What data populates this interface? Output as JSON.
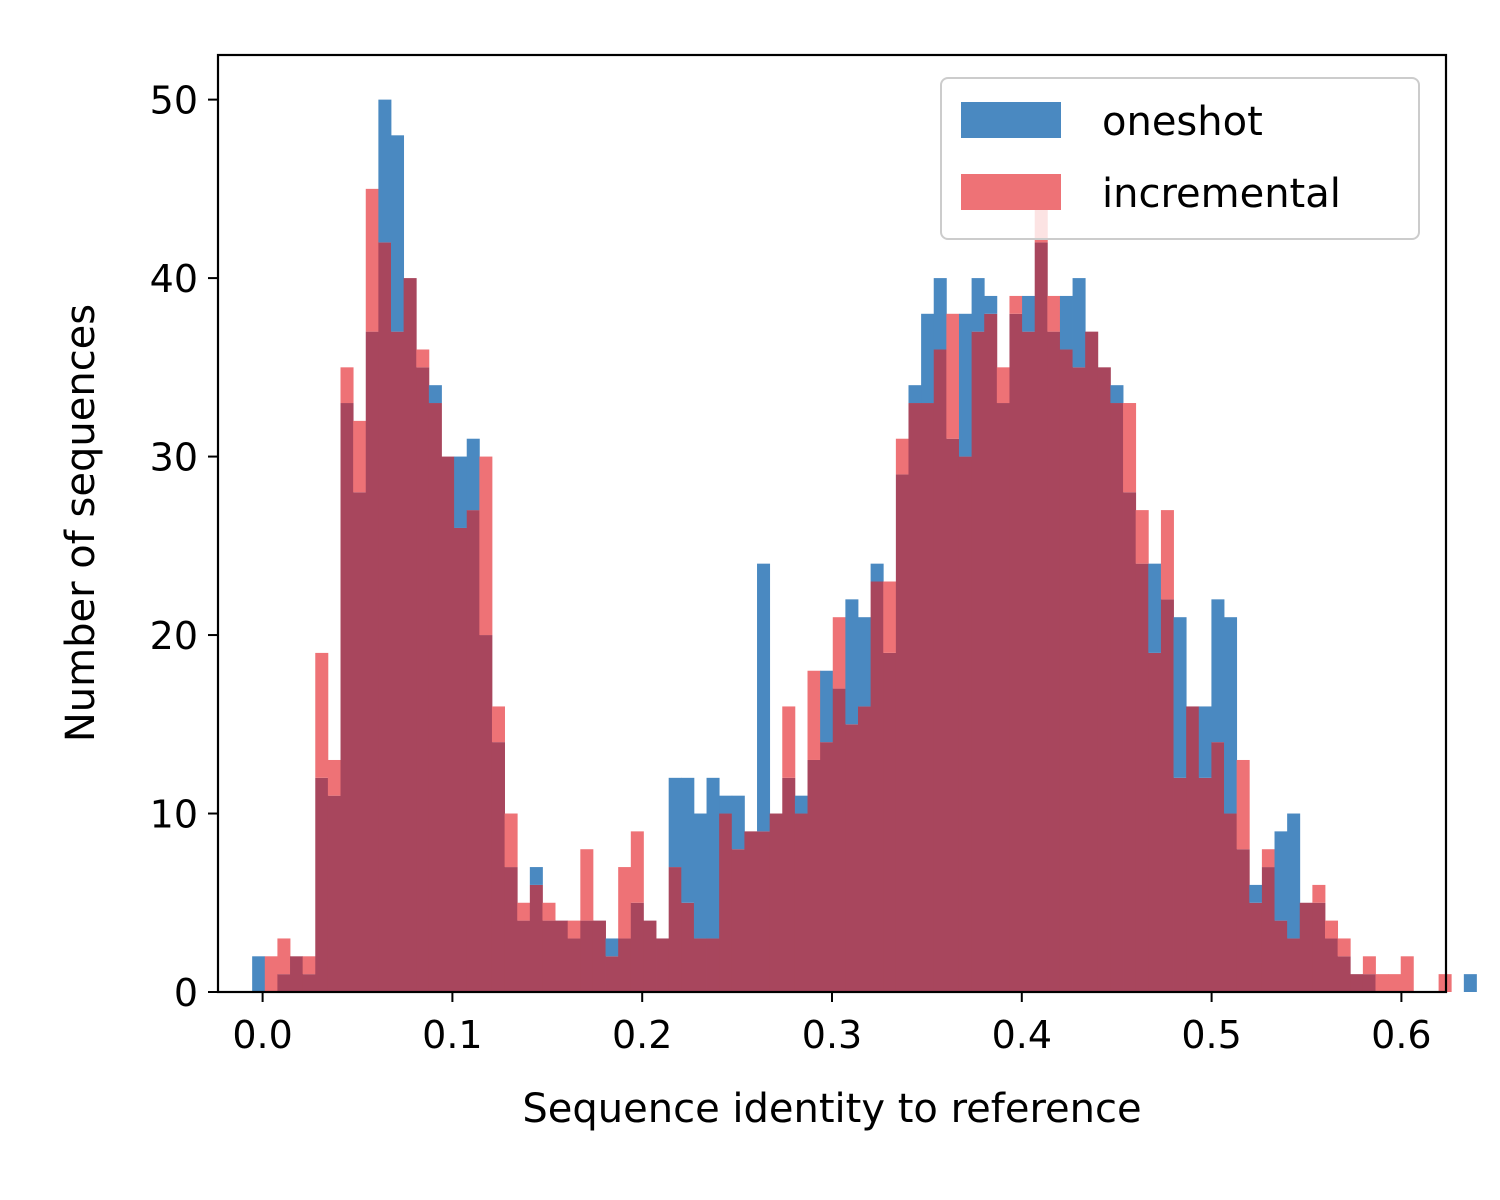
{
  "chart_data": {
    "type": "histogram",
    "title": "",
    "xlabel": "Sequence identity to reference",
    "ylabel": "Number of sequences",
    "xlim": [
      -0.0235,
      0.6235
    ],
    "ylim": [
      0,
      52.5
    ],
    "xticks": [
      0.0,
      0.1,
      0.2,
      0.3,
      0.4,
      0.5,
      0.6
    ],
    "xtick_labels": [
      "0.0",
      "0.1",
      "0.2",
      "0.3",
      "0.4",
      "0.5",
      "0.6"
    ],
    "yticks": [
      0,
      10,
      20,
      30,
      40,
      50
    ],
    "ytick_labels": [
      "0",
      "10",
      "20",
      "30",
      "40",
      "50"
    ],
    "bin_start": -0.0055,
    "bin_width": 0.00665,
    "legend_position": "upper right",
    "overlap_color": "#a8465d",
    "series": [
      {
        "name": "oneshot",
        "color": "#4a89c1",
        "values": [
          2,
          0,
          1,
          2,
          1,
          12,
          11,
          33,
          28,
          37,
          50,
          48,
          40,
          35,
          34,
          30,
          30,
          31,
          20,
          14,
          7,
          4,
          7,
          4,
          4,
          3,
          4,
          4,
          3,
          3,
          5,
          4,
          3,
          12,
          12,
          10,
          12,
          11,
          11,
          9,
          24,
          10,
          12,
          11,
          13,
          18,
          17,
          22,
          21,
          24,
          19,
          29,
          34,
          38,
          40,
          31,
          38,
          40,
          39,
          33,
          38,
          39,
          42,
          37,
          39,
          40,
          37,
          35,
          34,
          28,
          24,
          24,
          22,
          21,
          16,
          16,
          22,
          21,
          8,
          6,
          7,
          9,
          10,
          5,
          5,
          3,
          2,
          1,
          1,
          0,
          0,
          0,
          0,
          0,
          0,
          0,
          1,
          0,
          0,
          0,
          0,
          0,
          0,
          0,
          0,
          0,
          0,
          0
        ]
      },
      {
        "name": "incremental",
        "color": "#ee7276",
        "values": [
          0,
          2,
          3,
          2,
          2,
          19,
          13,
          35,
          32,
          45,
          42,
          37,
          40,
          36,
          33,
          30,
          26,
          27,
          30,
          16,
          10,
          5,
          6,
          5,
          4,
          4,
          8,
          4,
          2,
          7,
          9,
          4,
          3,
          7,
          5,
          3,
          3,
          10,
          8,
          9,
          9,
          10,
          16,
          10,
          18,
          14,
          21,
          15,
          16,
          23,
          23,
          31,
          33,
          33,
          36,
          38,
          30,
          37,
          38,
          35,
          39,
          37,
          44,
          39,
          36,
          35,
          37,
          35,
          33,
          33,
          27,
          19,
          27,
          12,
          16,
          12,
          14,
          10,
          13,
          5,
          8,
          4,
          3,
          5,
          6,
          4,
          3,
          1,
          2,
          1,
          1,
          2,
          0,
          0,
          1,
          0,
          0,
          0,
          0,
          0,
          0,
          0,
          0,
          0,
          0,
          0,
          0,
          0
        ]
      }
    ]
  }
}
